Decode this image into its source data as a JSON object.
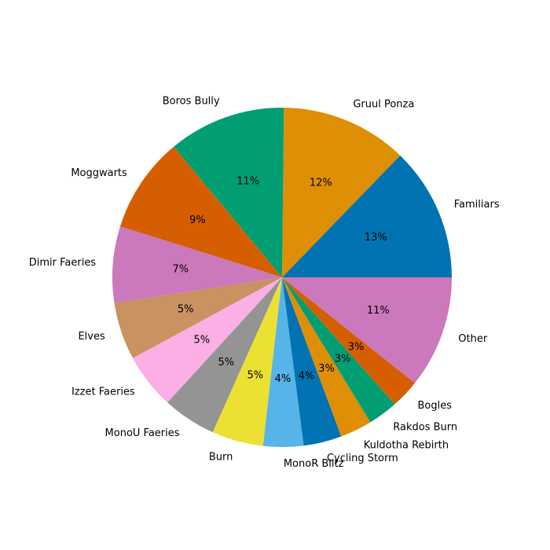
{
  "chart_data": {
    "type": "pie",
    "title": "",
    "slices": [
      {
        "label": "Familiars",
        "pct_label": "13%",
        "value": 13.0,
        "color": "#0173b2"
      },
      {
        "label": "Gruul Ponza",
        "pct_label": "12%",
        "value": 12.3,
        "color": "#de8f05"
      },
      {
        "label": "Boros Bully",
        "pct_label": "11%",
        "value": 11.4,
        "color": "#029e73"
      },
      {
        "label": "Moggwarts",
        "pct_label": "9%",
        "value": 9.3,
        "color": "#d55e00"
      },
      {
        "label": "Dimir Faeries",
        "pct_label": "7%",
        "value": 7.4,
        "color": "#cc78bc"
      },
      {
        "label": "Elves",
        "pct_label": "5%",
        "value": 5.6,
        "color": "#ca9161"
      },
      {
        "label": "Izzet Faeries",
        "pct_label": "5%",
        "value": 5.4,
        "color": "#fbafe4"
      },
      {
        "label": "MonoU Faeries",
        "pct_label": "5%",
        "value": 5.2,
        "color": "#949494"
      },
      {
        "label": "Burn",
        "pct_label": "5%",
        "value": 5.0,
        "color": "#ece133"
      },
      {
        "label": "MonoR Blitz",
        "pct_label": "4%",
        "value": 3.9,
        "color": "#56b4e9"
      },
      {
        "label": "Cycling Storm",
        "pct_label": "4%",
        "value": 3.7,
        "color": "#0173b2"
      },
      {
        "label": "Kuldotha Rebirth",
        "pct_label": "3%",
        "value": 3.1,
        "color": "#de8f05"
      },
      {
        "label": "Rakdos Burn",
        "pct_label": "3%",
        "value": 2.9,
        "color": "#029e73"
      },
      {
        "label": "Bogles",
        "pct_label": "3%",
        "value": 2.8,
        "color": "#d55e00"
      },
      {
        "label": "Other",
        "pct_label": "11%",
        "value": 10.9,
        "color": "#cc78bc"
      }
    ],
    "start_angle_deg": 0,
    "direction": "counterclockwise",
    "legend": "none"
  }
}
